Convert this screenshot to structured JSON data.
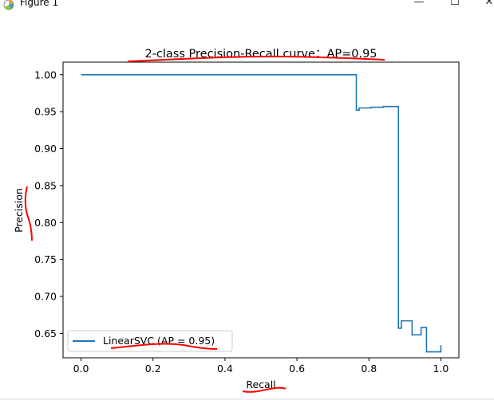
{
  "window": {
    "title": "Figure 1",
    "minimize_glyph": "—",
    "maximize_glyph": "☐",
    "close_glyph": "✕"
  },
  "colors": {
    "series": "#1f77b4",
    "annotation": "#ff0000",
    "axes": "#000000"
  },
  "chart_data": {
    "type": "line",
    "title": "2-class Precision-Recall curve：AP=0.95",
    "xlabel": "Recall",
    "ylabel": "Precision",
    "xlim": [
      -0.05,
      1.05
    ],
    "ylim": [
      0.617,
      1.017
    ],
    "xticks": [
      0.0,
      0.2,
      0.4,
      0.6,
      0.8,
      1.0
    ],
    "xtick_labels": [
      "0.0",
      "0.2",
      "0.4",
      "0.6",
      "0.8",
      "1.0"
    ],
    "yticks": [
      0.65,
      0.7,
      0.75,
      0.8,
      0.85,
      0.9,
      0.95,
      1.0
    ],
    "ytick_labels": [
      "0.65",
      "0.70",
      "0.75",
      "0.80",
      "0.85",
      "0.90",
      "0.95",
      "1.00"
    ],
    "grid": false,
    "legend_position": "lower-left",
    "series": [
      {
        "name": "LinearSVC (AP = 0.95)",
        "drawstyle": "steps-post",
        "x": [
          0.0,
          0.765,
          0.765,
          0.773,
          0.805,
          0.84,
          0.882,
          0.882,
          0.89,
          0.92,
          0.92,
          0.945,
          0.96,
          0.96,
          1.0
        ],
        "y": [
          1.0,
          1.0,
          0.952,
          0.955,
          0.956,
          0.957,
          0.957,
          0.657,
          0.667,
          0.667,
          0.648,
          0.658,
          0.658,
          0.625,
          0.634
        ]
      }
    ]
  }
}
